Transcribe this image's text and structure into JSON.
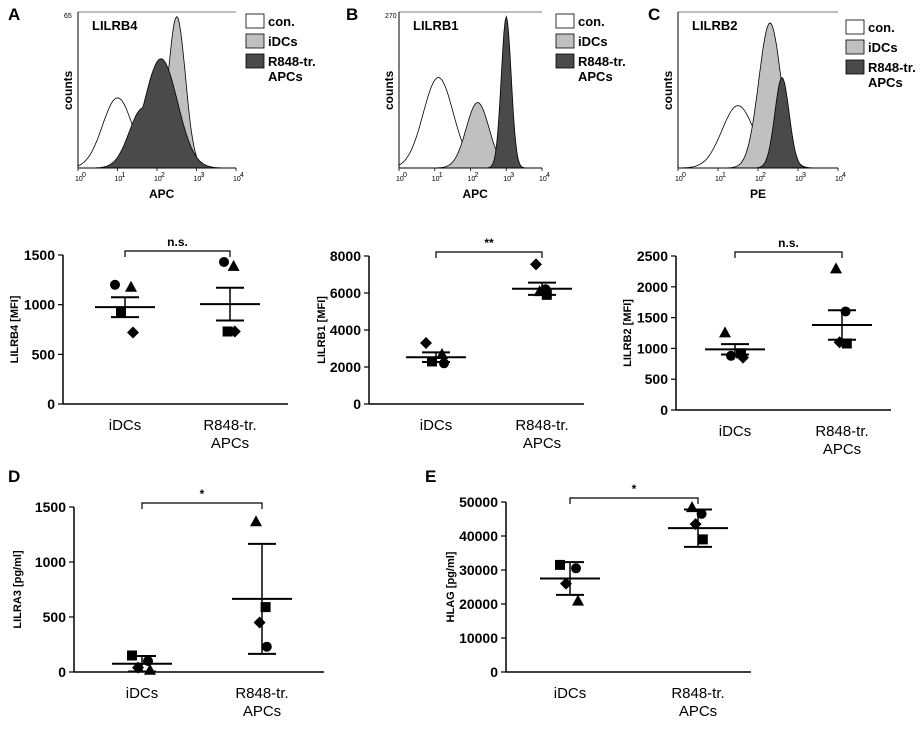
{
  "chart_data": [
    {
      "panel": "A",
      "type": "histogram",
      "title": "LILRB4",
      "xlabel": "APC",
      "ylabel": "counts",
      "ymax_label": "65",
      "xticks": [
        "10",
        "1",
        "2",
        "3",
        "4"
      ],
      "xtick_exp": [
        "0",
        "",
        "",
        "",
        ""
      ],
      "legend": [
        "con.",
        "iDCs",
        "R848-tr. APCs"
      ],
      "legend_lines": [
        "con.",
        "iDCs",
        "R848-tr.",
        "APCs"
      ],
      "series_peaks": [
        {
          "name": "con.",
          "fill": "#ffffff",
          "peak_log": 1.0
        },
        {
          "name": "iDCs",
          "fill": "#c0c0c0",
          "peak_log": 2.5
        },
        {
          "name": "R848-tr. APCs",
          "fill": "#4a4a4a",
          "peak_log": 2.1
        }
      ]
    },
    {
      "panel": "B",
      "type": "histogram",
      "title": "LILRB1",
      "xlabel": "APC",
      "ylabel": "counts",
      "ymax_label": "270",
      "xticks": [
        "10",
        "1",
        "2",
        "3",
        "4"
      ],
      "legend": [
        "con.",
        "iDCs",
        "R848-tr. APCs"
      ],
      "legend_lines": [
        "con.",
        "iDCs",
        "R848-tr.",
        "APCs"
      ],
      "series_peaks": [
        {
          "name": "con.",
          "fill": "#ffffff",
          "peak_log": 1.1
        },
        {
          "name": "iDCs",
          "fill": "#c0c0c0",
          "peak_log": 2.2
        },
        {
          "name": "R848-tr. APCs",
          "fill": "#4a4a4a",
          "peak_log": 3.0
        }
      ]
    },
    {
      "panel": "C",
      "type": "histogram",
      "title": "LILRB2",
      "xlabel": "PE",
      "ylabel": "counts",
      "xticks": [
        "10",
        "1",
        "2",
        "3",
        "4"
      ],
      "legend": [
        "con.",
        "iDCs",
        "R848-tr. APCs"
      ],
      "legend_lines": [
        "con.",
        "iDCs",
        "R848-tr.",
        "APCs"
      ],
      "series_peaks": [
        {
          "name": "con.",
          "fill": "#ffffff",
          "peak_log": 1.5
        },
        {
          "name": "iDCs",
          "fill": "#c0c0c0",
          "peak_log": 2.3
        },
        {
          "name": "R848-tr. APCs",
          "fill": "#4a4a4a",
          "peak_log": 2.6
        }
      ]
    },
    {
      "panel": "A",
      "type": "scatter",
      "ylabel": "LILRB4 [MFI]",
      "categories": [
        "iDCs",
        "R848-tr.\nAPCs"
      ],
      "cat_lines": [
        [
          "iDCs"
        ],
        [
          "R848-tr.",
          "APCs"
        ]
      ],
      "ylim": [
        0,
        1500
      ],
      "yticks": [
        0,
        500,
        1000,
        1500
      ],
      "significance": "n.s.",
      "groups": [
        {
          "name": "iDCs",
          "points": [
            {
              "shape": "circle",
              "v": 1200
            },
            {
              "shape": "triangle",
              "v": 1180
            },
            {
              "shape": "square",
              "v": 920
            },
            {
              "shape": "diamond",
              "v": 720
            }
          ],
          "mean": 975,
          "sem_low": 875,
          "sem_high": 1075
        },
        {
          "name": "R848-tr. APCs",
          "points": [
            {
              "shape": "circle",
              "v": 1430
            },
            {
              "shape": "triangle",
              "v": 1390
            },
            {
              "shape": "square",
              "v": 730
            },
            {
              "shape": "diamond",
              "v": 730
            }
          ],
          "mean": 1005,
          "sem_low": 840,
          "sem_high": 1170
        }
      ]
    },
    {
      "panel": "B",
      "type": "scatter",
      "ylabel": "LILRB1 [MFI]",
      "categories": [
        "iDCs",
        "R848-tr.\nAPCs"
      ],
      "cat_lines": [
        [
          "iDCs"
        ],
        [
          "R848-tr.",
          "APCs"
        ]
      ],
      "ylim": [
        0,
        8000
      ],
      "yticks": [
        0,
        2000,
        4000,
        6000,
        8000
      ],
      "significance": "**",
      "groups": [
        {
          "name": "iDCs",
          "points": [
            {
              "shape": "diamond",
              "v": 3300
            },
            {
              "shape": "triangle",
              "v": 2700
            },
            {
              "shape": "square",
              "v": 2300
            },
            {
              "shape": "circle",
              "v": 2200
            }
          ],
          "mean": 2530,
          "sem_low": 2270,
          "sem_high": 2790
        },
        {
          "name": "R848-tr. APCs",
          "points": [
            {
              "shape": "diamond",
              "v": 7550
            },
            {
              "shape": "circle",
              "v": 6200
            },
            {
              "shape": "triangle",
              "v": 6100
            },
            {
              "shape": "square",
              "v": 5900
            }
          ],
          "mean": 6230,
          "sem_low": 5900,
          "sem_high": 6560
        }
      ]
    },
    {
      "panel": "C",
      "type": "scatter",
      "ylabel": "LILRB2 [MFI]",
      "categories": [
        "iDCs",
        "R848-tr.\nAPCs"
      ],
      "cat_lines": [
        [
          "iDCs"
        ],
        [
          "R848-tr.",
          "APCs"
        ]
      ],
      "ylim": [
        0,
        2500
      ],
      "yticks": [
        0,
        500,
        1000,
        1500,
        2000,
        2500
      ],
      "significance": "n.s.",
      "groups": [
        {
          "name": "iDCs",
          "points": [
            {
              "shape": "triangle",
              "v": 1260
            },
            {
              "shape": "square",
              "v": 920
            },
            {
              "shape": "circle",
              "v": 880
            },
            {
              "shape": "diamond",
              "v": 850
            }
          ],
          "mean": 985,
          "sem_low": 900,
          "sem_high": 1070
        },
        {
          "name": "R848-tr. APCs",
          "points": [
            {
              "shape": "triangle",
              "v": 2300
            },
            {
              "shape": "circle",
              "v": 1600
            },
            {
              "shape": "diamond",
              "v": 1100
            },
            {
              "shape": "square",
              "v": 1080
            }
          ],
          "mean": 1380,
          "sem_low": 1140,
          "sem_high": 1620
        }
      ]
    },
    {
      "panel": "D",
      "type": "scatter",
      "ylabel": "LILRA3 [pg/ml]",
      "categories": [
        "iDCs",
        "R848-tr.\nAPCs"
      ],
      "cat_lines": [
        [
          "iDCs"
        ],
        [
          "R848-tr.",
          "APCs"
        ]
      ],
      "ylim": [
        0,
        1500
      ],
      "yticks": [
        0,
        500,
        1000,
        1500
      ],
      "significance": "*",
      "groups": [
        {
          "name": "iDCs",
          "points": [
            {
              "shape": "square",
              "v": 150
            },
            {
              "shape": "circle",
              "v": 100
            },
            {
              "shape": "diamond",
              "v": 40
            },
            {
              "shape": "triangle",
              "v": 20
            }
          ],
          "mean": 75,
          "sem_low": 5,
          "sem_high": 145
        },
        {
          "name": "R848-tr. APCs",
          "points": [
            {
              "shape": "triangle",
              "v": 1370
            },
            {
              "shape": "square",
              "v": 590
            },
            {
              "shape": "diamond",
              "v": 450
            },
            {
              "shape": "circle",
              "v": 230
            }
          ],
          "mean": 665,
          "sem_low": 165,
          "sem_high": 1165
        }
      ]
    },
    {
      "panel": "E",
      "type": "scatter",
      "ylabel": "HLAG [pg/ml]",
      "categories": [
        "iDCs",
        "R848-tr.\nAPCs"
      ],
      "cat_lines": [
        [
          "iDCs"
        ],
        [
          "R848-tr.",
          "APCs"
        ]
      ],
      "ylim": [
        0,
        50000
      ],
      "yticks": [
        0,
        10000,
        20000,
        30000,
        40000,
        50000
      ],
      "significance": "*",
      "groups": [
        {
          "name": "iDCs",
          "points": [
            {
              "shape": "square",
              "v": 31500
            },
            {
              "shape": "circle",
              "v": 30500
            },
            {
              "shape": "diamond",
              "v": 26000
            },
            {
              "shape": "triangle",
              "v": 21000
            }
          ],
          "mean": 27500,
          "sem_low": 22700,
          "sem_high": 32300
        },
        {
          "name": "R848-tr. APCs",
          "points": [
            {
              "shape": "triangle",
              "v": 48500
            },
            {
              "shape": "circle",
              "v": 46500
            },
            {
              "shape": "diamond",
              "v": 43500
            },
            {
              "shape": "square",
              "v": 39000
            }
          ],
          "mean": 42300,
          "sem_low": 36800,
          "sem_high": 47800
        }
      ]
    }
  ]
}
